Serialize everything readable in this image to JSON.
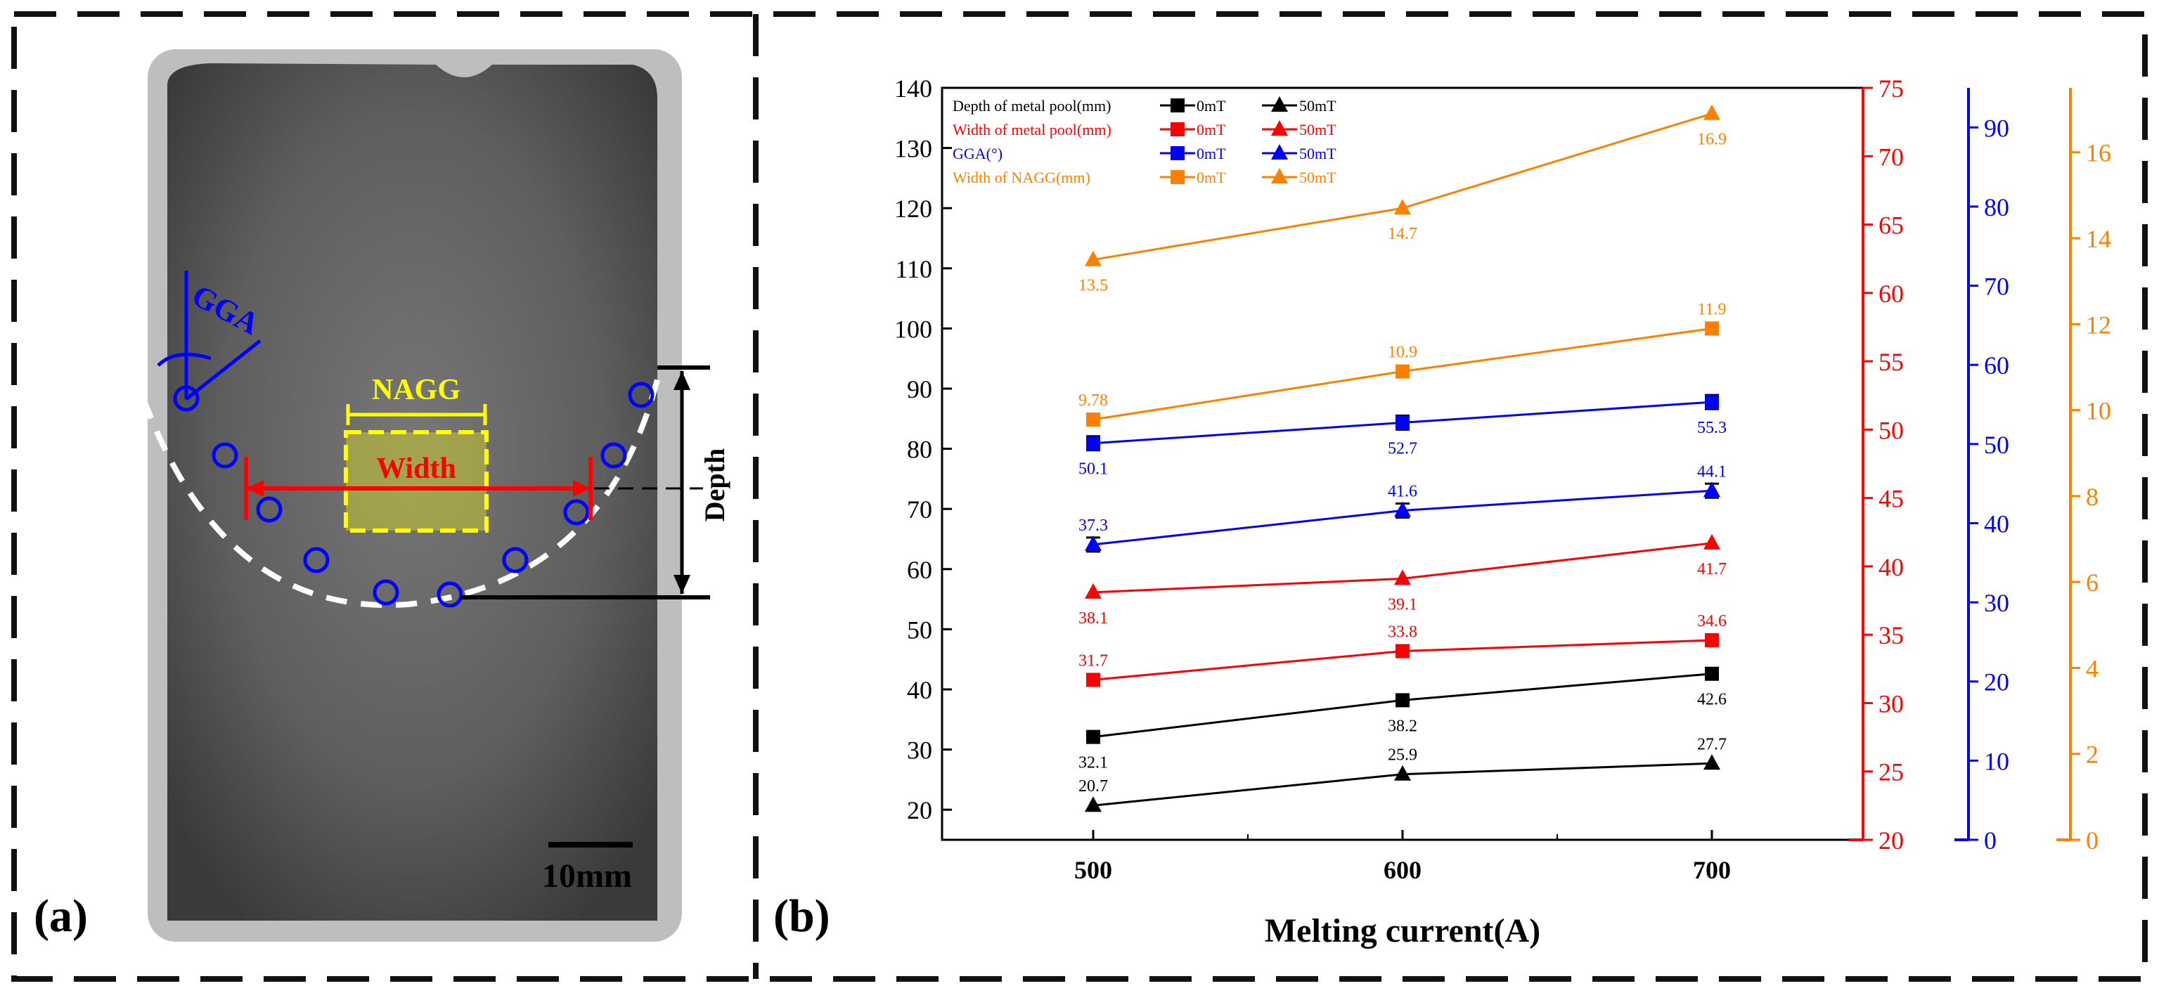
{
  "panel_a": {
    "label": "(a)",
    "annotations": {
      "gga": "GGA",
      "nagg": "NAGG",
      "width": "Width",
      "depth": "Depth",
      "scale": "10mm"
    }
  },
  "panel_b": {
    "label": "(b)"
  },
  "colors": {
    "depth": "#000000",
    "width": "#ff0000",
    "gga": "#0000ff",
    "nagg": "#ff8000"
  },
  "chart_data": {
    "type": "line",
    "title": "",
    "xlabel": "Melting current(A)",
    "categories": [
      500,
      600,
      700
    ],
    "axes": {
      "left": {
        "color": "#000000",
        "range": [
          15,
          140
        ],
        "ticks": [
          20,
          30,
          40,
          50,
          60,
          70,
          80,
          90,
          100,
          110,
          120,
          130,
          140
        ]
      },
      "right1": {
        "color": "#ff0000",
        "range": [
          20,
          75
        ],
        "ticks": [
          20,
          25,
          30,
          35,
          40,
          45,
          50,
          55,
          60,
          65,
          70,
          75
        ]
      },
      "right2": {
        "color": "#0000ff",
        "range": [
          0,
          95
        ],
        "ticks": [
          0,
          10,
          20,
          30,
          40,
          50,
          60,
          70,
          80,
          90
        ]
      },
      "right3": {
        "color": "#ff8000",
        "range": [
          0,
          17.5
        ],
        "ticks": [
          0,
          2,
          4,
          6,
          8,
          10,
          12,
          14,
          16
        ]
      }
    },
    "legend": {
      "placement": "top-left",
      "rows": [
        {
          "label": "Depth of metal pool(mm)",
          "color": "#000000",
          "m0": "0mT",
          "m50": "50mT"
        },
        {
          "label": "Width of metal pool(mm)",
          "color": "#ff0000",
          "m0": "0mT",
          "m50": "50mT"
        },
        {
          "label": "GGA(°)",
          "color": "#0000ff",
          "m0": "0mT",
          "m50": "50mT"
        },
        {
          "label": "Width of NAGG(mm)",
          "color": "#ff8000",
          "m0": "0mT",
          "m50": "50mT"
        }
      ]
    },
    "series": [
      {
        "name": "Depth of metal pool 0mT",
        "axis": "left",
        "marker": "square",
        "color": "#000000",
        "values": [
          32.1,
          38.2,
          42.6
        ],
        "labels": [
          "32.1",
          "38.2",
          "42.6"
        ],
        "label_pos": [
          "below",
          "below",
          "below"
        ],
        "errorbars": false
      },
      {
        "name": "Depth of metal pool 50mT",
        "axis": "left",
        "marker": "triangle",
        "color": "#000000",
        "values": [
          20.7,
          25.9,
          27.7
        ],
        "labels": [
          "20.7",
          "25.9",
          "27.7"
        ],
        "label_pos": [
          "above",
          "above",
          "above"
        ],
        "errorbars": false
      },
      {
        "name": "Width of metal pool 0mT",
        "axis": "right1",
        "marker": "square",
        "color": "#ff0000",
        "values": [
          31.7,
          33.8,
          34.6
        ],
        "labels": [
          "31.7",
          "33.8",
          "34.6"
        ],
        "label_pos": [
          "above",
          "above",
          "above"
        ],
        "errorbars": false
      },
      {
        "name": "Width of metal pool 50mT",
        "axis": "right1",
        "marker": "triangle",
        "color": "#ff0000",
        "values": [
          38.1,
          39.1,
          41.7
        ],
        "labels": [
          "38.1",
          "39.1",
          "41.7"
        ],
        "label_pos": [
          "below",
          "below",
          "below"
        ],
        "errorbars": false
      },
      {
        "name": "GGA 0mT",
        "axis": "right2",
        "marker": "square",
        "color": "#0000ff",
        "values": [
          50.1,
          52.7,
          55.3
        ],
        "labels": [
          "50.1",
          "52.7",
          "55.3"
        ],
        "label_pos": [
          "below",
          "below",
          "below"
        ],
        "errorbars": true
      },
      {
        "name": "GGA 50mT",
        "axis": "right2",
        "marker": "triangle",
        "color": "#0000ff",
        "values": [
          37.3,
          41.6,
          44.1
        ],
        "labels": [
          "37.3",
          "41.6",
          "44.1"
        ],
        "label_pos": [
          "above",
          "above",
          "above"
        ],
        "errorbars": true
      },
      {
        "name": "Width of NAGG 0mT",
        "axis": "right3",
        "marker": "square",
        "color": "#ff8000",
        "values": [
          9.78,
          10.9,
          11.9
        ],
        "labels": [
          "9.78",
          "10.9",
          "11.9"
        ],
        "label_pos": [
          "above",
          "above",
          "above"
        ],
        "errorbars": false
      },
      {
        "name": "Width of NAGG 50mT",
        "axis": "right3",
        "marker": "triangle",
        "color": "#ff8000",
        "values": [
          13.5,
          14.7,
          16.9
        ],
        "labels": [
          "13.5",
          "14.7",
          "16.9"
        ],
        "label_pos": [
          "below",
          "below",
          "below"
        ],
        "errorbars": false
      }
    ]
  }
}
